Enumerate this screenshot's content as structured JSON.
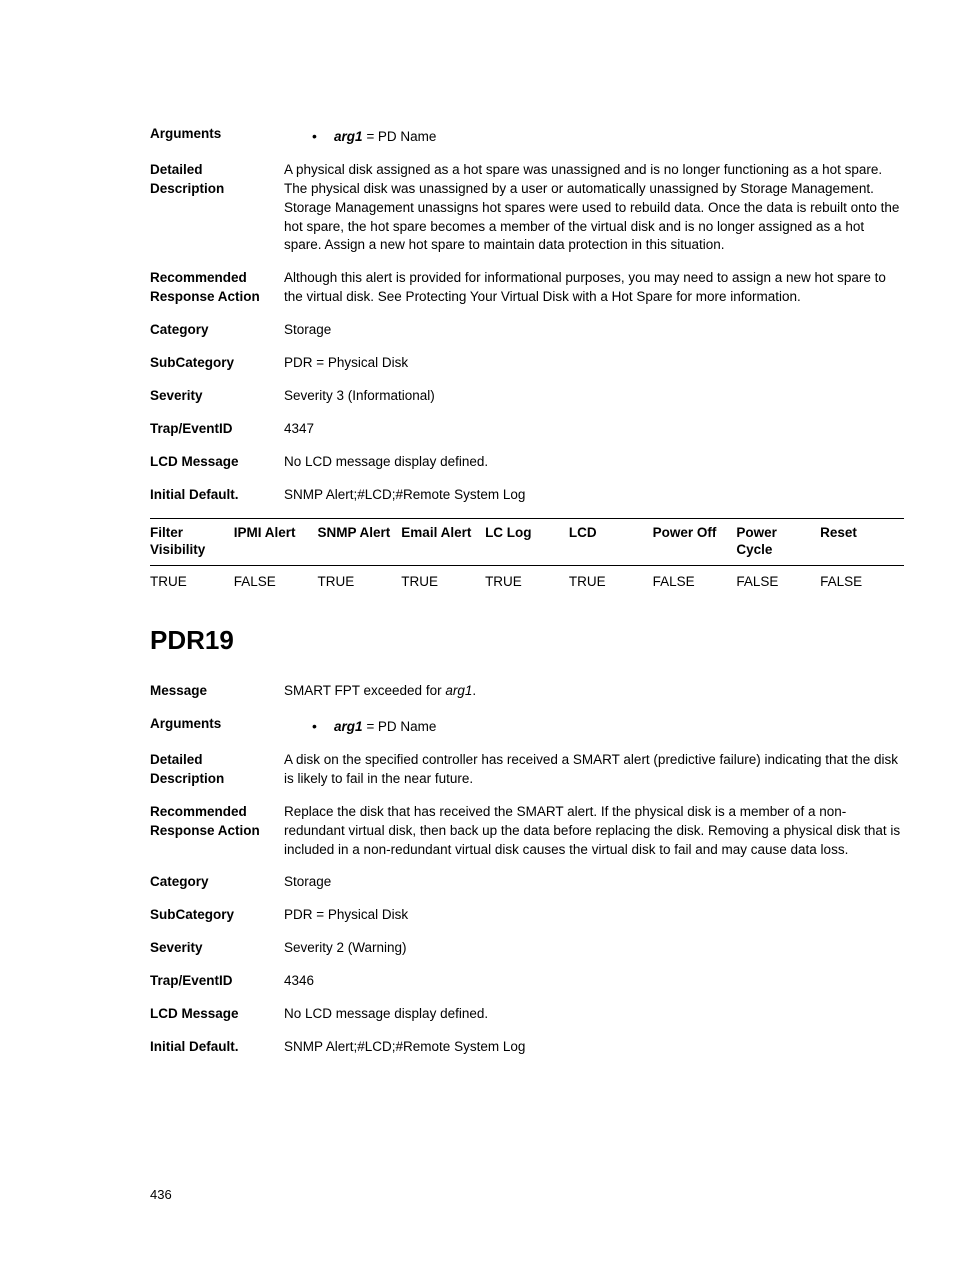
{
  "page_number": "436",
  "entry1": {
    "labels": {
      "arguments": "Arguments",
      "detailed": "Detailed Description",
      "recommended": "Recommended Response Action",
      "category": "Category",
      "subcategory": "SubCategory",
      "severity": "Severity",
      "trap": "Trap/EventID",
      "lcd": "LCD Message",
      "initial": "Initial Default."
    },
    "arguments": [
      {
        "name": "arg1",
        "sep": " = ",
        "desc": "PD Name"
      }
    ],
    "detailed": "A physical disk assigned as a hot spare was unassigned and is no longer functioning as a hot spare. The physical disk was unassigned by a user or automatically unassigned by Storage Management. Storage Management unassigns hot spares were used to rebuild data. Once the data is rebuilt onto the hot spare, the hot spare becomes a member of the virtual disk and is no longer assigned as a hot spare. Assign a new hot spare to maintain data protection in this situation.",
    "recommended": "Although this alert is provided for informational purposes, you may need to assign a new hot spare to the virtual disk. See Protecting Your Virtual Disk with a Hot Spare for more information.",
    "category": "Storage",
    "subcategory": "PDR = Physical Disk",
    "severity": "Severity 3 (Informational)",
    "trap": "4347",
    "lcd": "No LCD message display defined.",
    "initial": "SNMP Alert;#LCD;#Remote System Log",
    "table": {
      "headers": [
        "Filter Visibility",
        "IPMI Alert",
        "SNMP Alert",
        "Email Alert",
        "LC Log",
        "LCD",
        "Power Off",
        "Power Cycle",
        "Reset"
      ],
      "row": [
        "TRUE",
        "FALSE",
        "TRUE",
        "TRUE",
        "TRUE",
        "TRUE",
        "FALSE",
        "FALSE",
        "FALSE"
      ]
    }
  },
  "entry2": {
    "title": "PDR19",
    "labels": {
      "message": "Message",
      "arguments": "Arguments",
      "detailed": "Detailed Description",
      "recommended": "Recommended Response Action",
      "category": "Category",
      "subcategory": "SubCategory",
      "severity": "Severity",
      "trap": "Trap/EventID",
      "lcd": "LCD Message",
      "initial": "Initial Default."
    },
    "message_pre": "SMART FPT exceeded for ",
    "message_arg": "arg1",
    "message_post": ".",
    "arguments": [
      {
        "name": "arg1",
        "sep": " = ",
        "desc": "PD Name"
      }
    ],
    "detailed": "A disk on the specified controller has received a SMART alert (predictive failure) indicating that the disk is likely to fail in the near future.",
    "recommended": "Replace the disk that has received the SMART alert. If the physical disk is a member of a non-redundant virtual disk, then back up the data before replacing the disk. Removing a physical disk that is included in a non-redundant virtual disk causes the virtual disk to fail and may cause data loss.",
    "category": "Storage",
    "subcategory": "PDR = Physical Disk",
    "severity": "Severity 2 (Warning)",
    "trap": "4346",
    "lcd": "No LCD message display defined.",
    "initial": "SNMP Alert;#LCD;#Remote System Log"
  }
}
